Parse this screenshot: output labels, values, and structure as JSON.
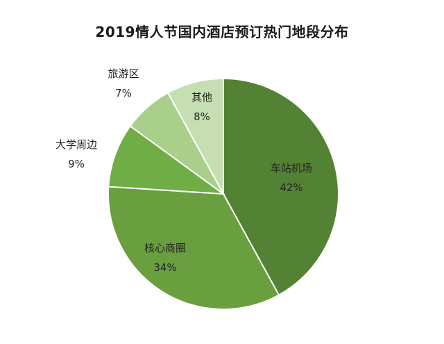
{
  "chart_data": {
    "type": "pie",
    "title": "2019情人节国内酒店预订热门地段分布",
    "slices": [
      {
        "label": "车站机场",
        "value": 42,
        "display": "42%",
        "color": "#548235"
      },
      {
        "label": "核心商圈",
        "value": 34,
        "display": "34%",
        "color": "#6a9f40"
      },
      {
        "label": "大学周边",
        "value": 9,
        "display": "9%",
        "color": "#70ad47"
      },
      {
        "label": "旅游区",
        "value": 7,
        "display": "7%",
        "color": "#a9cf8a"
      },
      {
        "label": "其他",
        "value": 8,
        "display": "8%",
        "color": "#c5dfb3"
      }
    ],
    "legend": "none"
  }
}
